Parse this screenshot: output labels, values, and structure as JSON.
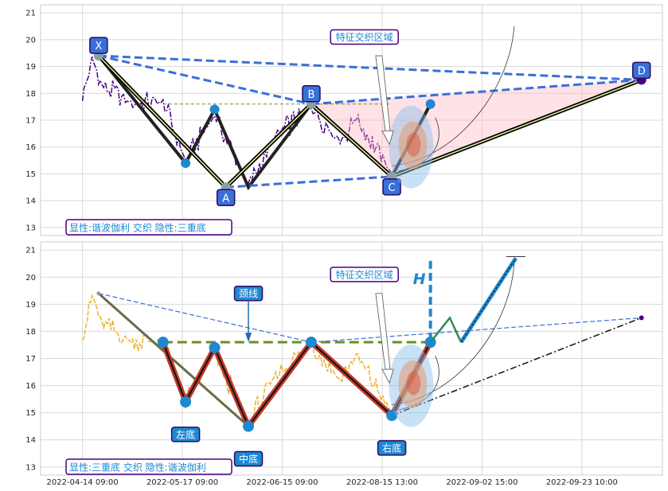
{
  "chart_data": [
    {
      "type": "line",
      "panel": "top",
      "ylim": [
        12.7,
        21.3
      ],
      "yticks": [
        13,
        14,
        15,
        16,
        17,
        18,
        19,
        20,
        21
      ],
      "price_color": "#4b0082",
      "pattern_points": [
        {
          "label": "X",
          "x": 1.0,
          "y": 19.4
        },
        {
          "label": "A",
          "x": 8.9,
          "y": 14.5
        },
        {
          "label": "B",
          "x": 14.2,
          "y": 17.6
        },
        {
          "label": "C",
          "x": 19.2,
          "y": 14.9
        },
        {
          "label": "D",
          "x": 34.7,
          "y": 18.5
        }
      ],
      "waves": [
        {
          "x": 1.0,
          "y": 19.4
        },
        {
          "x": 6.4,
          "y": 15.4
        },
        {
          "x": 8.2,
          "y": 17.4
        },
        {
          "x": 10.3,
          "y": 14.5
        },
        {
          "x": 14.2,
          "y": 17.6
        },
        {
          "x": 19.2,
          "y": 14.9
        },
        {
          "x": 21.6,
          "y": 17.6
        }
      ],
      "zone_label": "特征交织区域",
      "legend_text": "显性:谐波伽利 交织 隐性:三重底"
    },
    {
      "type": "line",
      "panel": "bottom",
      "ylim": [
        12.7,
        21.3
      ],
      "yticks": [
        13,
        14,
        15,
        16,
        17,
        18,
        19,
        20,
        21
      ],
      "price_color": "#f0b030",
      "neckline_label": "颈线",
      "height_label": "H",
      "bottom_labels": [
        "左底",
        "中底",
        "右底"
      ],
      "pattern_points": [
        {
          "x": 5.0,
          "y": 17.6
        },
        {
          "x": 6.4,
          "y": 15.4
        },
        {
          "x": 8.2,
          "y": 17.4
        },
        {
          "x": 10.3,
          "y": 14.5
        },
        {
          "x": 14.2,
          "y": 17.6
        },
        {
          "x": 19.2,
          "y": 14.9
        },
        {
          "x": 21.6,
          "y": 17.6
        }
      ],
      "projection": [
        {
          "x": 21.6,
          "y": 17.6
        },
        {
          "x": 22.8,
          "y": 18.5
        },
        {
          "x": 23.5,
          "y": 17.6
        },
        {
          "x": 26.9,
          "y": 20.7
        }
      ],
      "zone_label": "特征交织区域",
      "legend_text": "显性:三重底 交织 隐性:谐波伽利"
    }
  ],
  "x_axis": {
    "xlim": [
      -2.6,
      36
    ],
    "ticks": [
      {
        "x": 0,
        "label": "2022-04-14 09:00"
      },
      {
        "x": 6.2,
        "label": "2022-05-17 09:00"
      },
      {
        "x": 12.4,
        "label": "2022-06-15 09:00"
      },
      {
        "x": 18.6,
        "label": "2022-08-15 13:00"
      },
      {
        "x": 24.8,
        "label": "2022-09-02 15:00"
      },
      {
        "x": 31.0,
        "label": "2022-09-23 10:00"
      }
    ]
  }
}
